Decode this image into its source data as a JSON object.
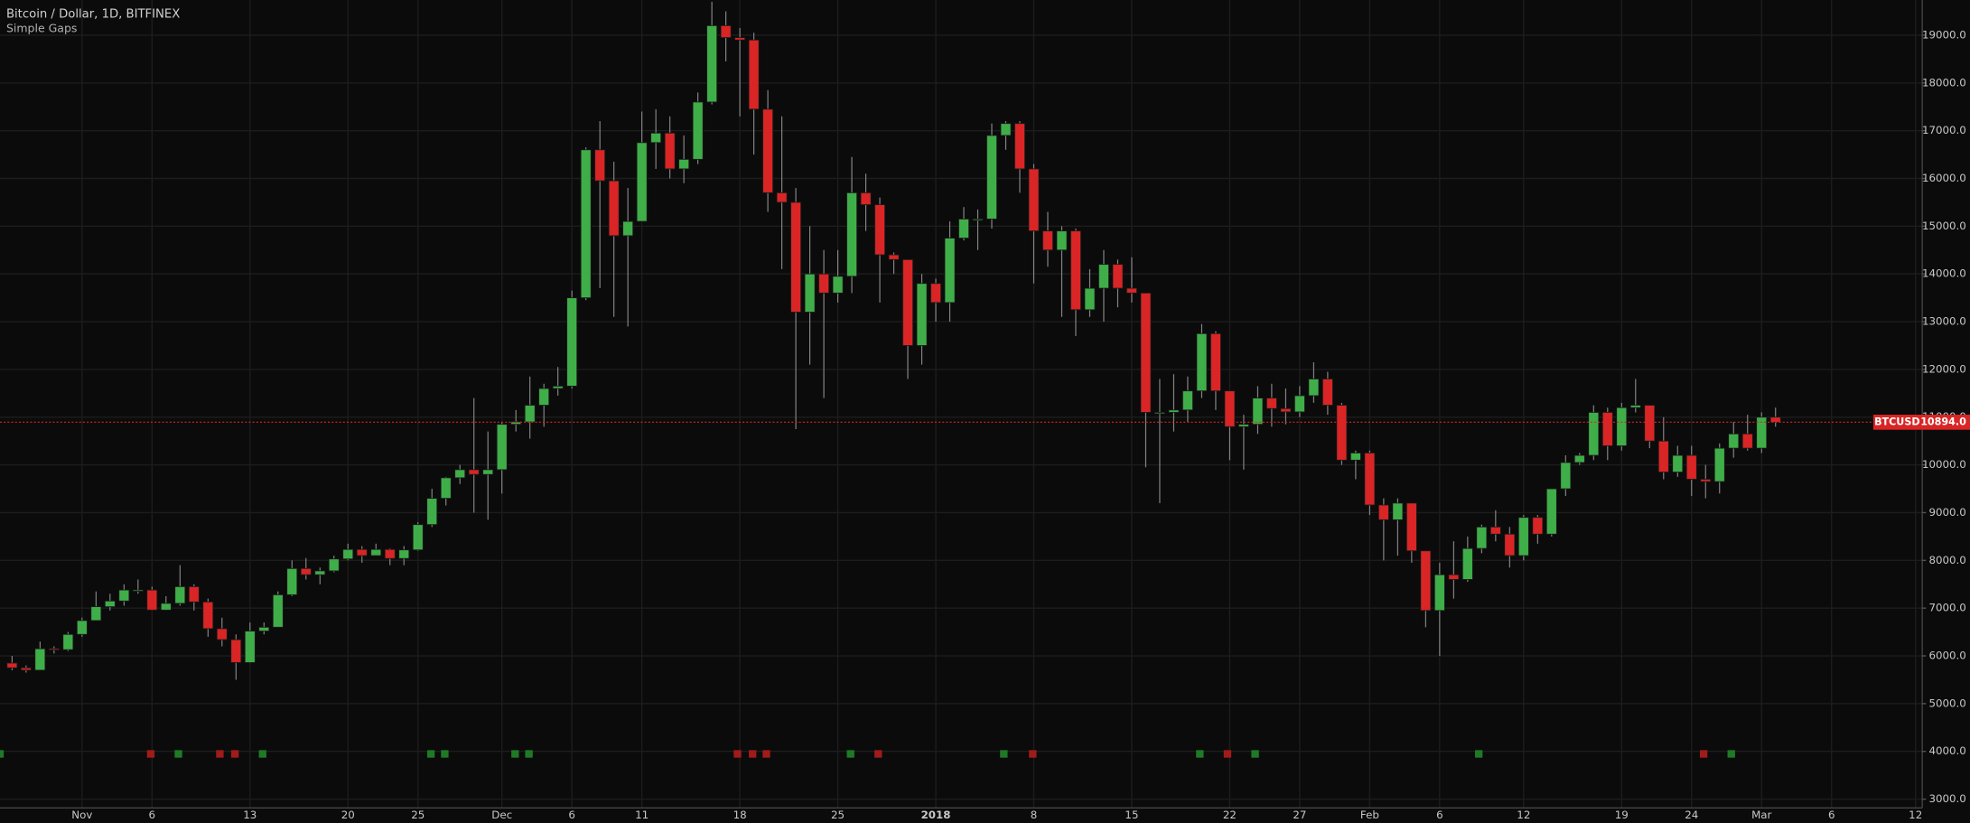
{
  "chart_data": {
    "type": "candlestick",
    "title": "Bitcoin / Dollar, 1D, BITFINEX",
    "subtitle": "Simple Gaps",
    "categories": [
      null,
      null,
      null,
      null,
      null,
      "Nov",
      null,
      null,
      null,
      null,
      "6",
      null,
      null,
      null,
      null,
      null,
      null,
      "13",
      null,
      null,
      null,
      null,
      null,
      null,
      "20",
      null,
      null,
      null,
      null,
      "25",
      null,
      null,
      null,
      null,
      null,
      "Dec",
      null,
      null,
      null,
      null,
      "6",
      null,
      null,
      null,
      null,
      "11",
      null,
      null,
      null,
      null,
      null,
      null,
      "18",
      null,
      null,
      null,
      null,
      null,
      null,
      "25",
      null,
      null,
      null,
      null,
      null,
      null,
      "2018",
      null,
      null,
      null,
      null,
      null,
      null,
      "8",
      null,
      null,
      null,
      null,
      null,
      null,
      "15",
      null,
      null,
      null,
      null,
      null,
      null,
      "22",
      null,
      null,
      null,
      null,
      "27",
      null,
      null,
      null,
      null,
      "Feb",
      null,
      null,
      null,
      null,
      "6",
      null,
      null,
      null,
      null,
      null,
      "12",
      null,
      null,
      null,
      null,
      null,
      null,
      "19",
      null,
      null,
      null,
      null,
      "24",
      null,
      null,
      null,
      null,
      "Mar",
      null,
      null,
      null,
      null,
      "6",
      null,
      null,
      null,
      null,
      null,
      "12"
    ],
    "open": [
      5850,
      5750,
      5700,
      6150,
      6130,
      6450,
      6740,
      7030,
      7150,
      7380,
      7380,
      6960,
      7100,
      7450,
      7130,
      6570,
      6340,
      5860,
      6520,
      6600,
      7280,
      7830,
      7700,
      7780,
      8030,
      8230,
      8100,
      8230,
      8040,
      8220,
      8750,
      9300,
      9730,
      9900,
      9800,
      9900,
      10850,
      10900,
      11250,
      11600,
      11650,
      13500,
      16600,
      15950,
      14800,
      15100,
      16750,
      16950,
      16200,
      16400,
      17600,
      19200,
      18950,
      18900,
      17450,
      15700,
      15500,
      13200,
      14000,
      13600,
      13950,
      15700,
      15450,
      14400,
      14300,
      12500,
      13800,
      13400,
      14750,
      15150,
      15150,
      16900,
      17150,
      16200,
      14900,
      14500,
      14900,
      13250,
      13700,
      14200,
      13700,
      13600,
      11100,
      11100,
      11150,
      11550,
      12750,
      11550,
      10800,
      10850,
      11400,
      11180,
      11110,
      11450,
      11800,
      11250,
      10100,
      10250,
      9160,
      8850,
      9200,
      8200,
      6950,
      7700,
      7600,
      8250,
      8700,
      8550,
      8100,
      8900,
      8550,
      9500,
      10050,
      10200,
      11100,
      10400,
      11200,
      11250,
      10500,
      9850,
      10200,
      9700,
      9650,
      10350,
      10650,
      10350,
      11000,
      null,
      null,
      null,
      null,
      null,
      null,
      null,
      null,
      null,
      null
    ],
    "high": [
      6000,
      5800,
      6300,
      6200,
      6500,
      6800,
      7350,
      7300,
      7500,
      7600,
      7450,
      7250,
      7900,
      7500,
      7200,
      6800,
      6450,
      6700,
      6700,
      7350,
      8000,
      8050,
      7850,
      8100,
      8350,
      8300,
      8350,
      8250,
      8300,
      8800,
      9500,
      9750,
      10000,
      11400,
      10700,
      10900,
      11150,
      11850,
      11700,
      12050,
      13650,
      16650,
      17200,
      16350,
      15800,
      17400,
      17450,
      17300,
      16900,
      17800,
      19700,
      19500,
      19150,
      19050,
      17850,
      17300,
      15800,
      15000,
      14500,
      14500,
      16450,
      16100,
      15600,
      14450,
      14300,
      14000,
      13900,
      15100,
      15400,
      15350,
      17150,
      17200,
      17200,
      16300,
      15300,
      15000,
      14950,
      14100,
      14500,
      14300,
      14350,
      13600,
      11800,
      11900,
      11850,
      12950,
      12800,
      11550,
      11050,
      11650,
      11700,
      11600,
      11650,
      12150,
      11950,
      11300,
      10300,
      10300,
      9300,
      9300,
      9200,
      8200,
      7950,
      8400,
      8500,
      8750,
      9050,
      8700,
      8950,
      8950,
      9500,
      10200,
      10250,
      11250,
      11200,
      11300,
      11800,
      11250,
      11000,
      10400,
      10400,
      10000,
      10450,
      10900,
      11050,
      11100,
      11200,
      null,
      null,
      null,
      null,
      null,
      null,
      null,
      null,
      null,
      null
    ],
    "low": [
      5700,
      5650,
      5700,
      6050,
      6100,
      6400,
      6750,
      6950,
      7050,
      7300,
      6950,
      6950,
      7050,
      6950,
      6400,
      6200,
      5500,
      5850,
      6450,
      6600,
      7250,
      7600,
      7500,
      7750,
      8000,
      7950,
      8100,
      7900,
      7900,
      8200,
      8700,
      9150,
      9600,
      9000,
      8850,
      9400,
      10700,
      10550,
      10800,
      11450,
      11600,
      13450,
      13700,
      13100,
      12900,
      15100,
      16200,
      16000,
      15900,
      16300,
      17550,
      18450,
      17300,
      16500,
      15300,
      14100,
      10750,
      12100,
      11400,
      13400,
      13600,
      14900,
      13400,
      14000,
      11800,
      12100,
      13000,
      13000,
      14700,
      14500,
      14950,
      16600,
      15700,
      13800,
      14150,
      13100,
      12700,
      13100,
      13000,
      13300,
      13400,
      9950,
      9200,
      10700,
      10900,
      11400,
      11150,
      10100,
      9900,
      10650,
      10800,
      10850,
      11000,
      11300,
      11050,
      10000,
      9700,
      8950,
      8000,
      8100,
      7950,
      6600,
      6000,
      7200,
      7550,
      8150,
      8400,
      7850,
      8000,
      8350,
      8500,
      9350,
      10000,
      10100,
      10100,
      10300,
      11100,
      10350,
      9700,
      9750,
      9350,
      9300,
      9400,
      10150,
      10300,
      10250,
      10800,
      null,
      null,
      null,
      null,
      null,
      null,
      null,
      null,
      null,
      null
    ],
    "close": [
      5750,
      5700,
      6150,
      6130,
      6450,
      6740,
      7030,
      7150,
      7380,
      7380,
      6960,
      7100,
      7450,
      7130,
      6570,
      6340,
      5860,
      6520,
      6600,
      7280,
      7830,
      7700,
      7780,
      8030,
      8230,
      8100,
      8230,
      8040,
      8220,
      8750,
      9300,
      9730,
      9900,
      9800,
      9900,
      10850,
      10900,
      11250,
      11600,
      11650,
      13500,
      16600,
      15950,
      14800,
      15100,
      16750,
      16950,
      16200,
      16400,
      17600,
      19200,
      18950,
      18900,
      17450,
      15700,
      15500,
      13200,
      14000,
      13600,
      13950,
      15700,
      15450,
      14400,
      14300,
      12500,
      13800,
      13400,
      14750,
      15150,
      15150,
      16900,
      17150,
      16200,
      14900,
      14500,
      14900,
      13250,
      13700,
      14200,
      13700,
      13600,
      11100,
      11100,
      11150,
      11550,
      12750,
      11550,
      10800,
      10850,
      11400,
      11180,
      11110,
      11450,
      11800,
      11250,
      10100,
      10250,
      9160,
      8850,
      9200,
      8200,
      6950,
      7700,
      7600,
      8250,
      8700,
      8550,
      8100,
      8900,
      8550,
      9500,
      10050,
      10200,
      11100,
      10400,
      11200,
      11250,
      10500,
      9850,
      10200,
      9700,
      9650,
      10350,
      10650,
      10350,
      11000,
      10894,
      null,
      null,
      null,
      null,
      null,
      null,
      null,
      null,
      null,
      null
    ],
    "up_color": "#3fae49",
    "down_color": "#d92525",
    "last_price": {
      "name": "BTCUSD",
      "value": 10894,
      "label": "10894.0",
      "color": "#d92525"
    },
    "ylim": [
      2763,
      19737
    ],
    "yticks": [
      {
        "value": 3000,
        "label": "3000.0"
      },
      {
        "value": 4000,
        "label": "4000.0"
      },
      {
        "value": 5000,
        "label": "5000.0"
      },
      {
        "value": 6000,
        "label": "6000.0"
      },
      {
        "value": 7000,
        "label": "7000.0"
      },
      {
        "value": 8000,
        "label": "8000.0"
      },
      {
        "value": 9000,
        "label": "9000.0"
      },
      {
        "value": 10000,
        "label": "10000.0"
      },
      {
        "value": 11000,
        "label": "11000.0"
      },
      {
        "value": 12000,
        "label": "12000.0"
      },
      {
        "value": 13000,
        "label": "13000.0"
      },
      {
        "value": 14000,
        "label": "14000.0"
      },
      {
        "value": 15000,
        "label": "15000.0"
      },
      {
        "value": 16000,
        "label": "16000.0"
      },
      {
        "value": 17000,
        "label": "17000.0"
      },
      {
        "value": 18000,
        "label": "18000.0"
      },
      {
        "value": 19000,
        "label": "19000.0"
      }
    ],
    "grid": true
  }
}
